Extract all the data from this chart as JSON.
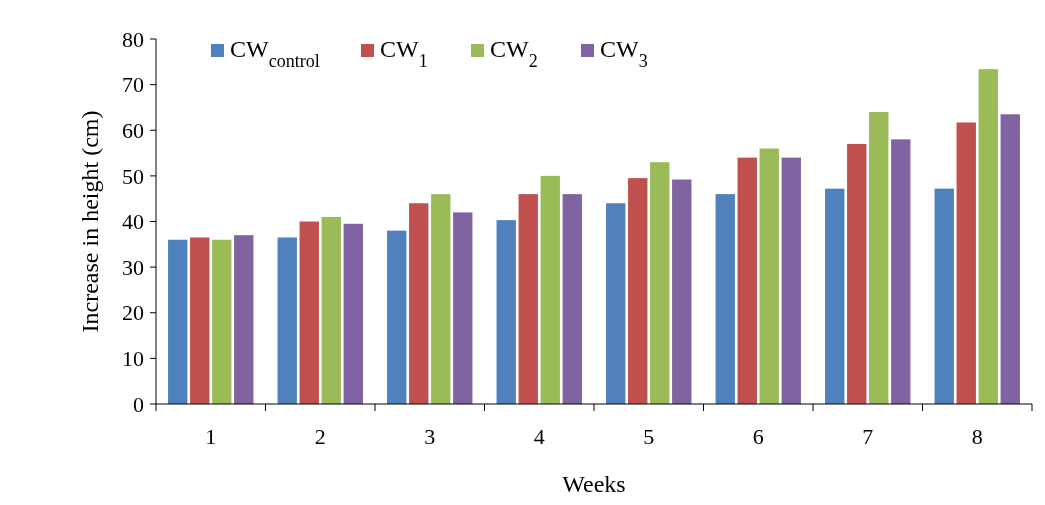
{
  "chart_data": {
    "type": "bar",
    "xlabel": "Weeks",
    "ylabel": "Increase in height (cm)",
    "categories": [
      "1",
      "2",
      "3",
      "4",
      "5",
      "6",
      "7",
      "8"
    ],
    "series": [
      {
        "name": "CW$_{control}$",
        "color": "#4f81bd",
        "values": [
          36,
          36.5,
          38,
          40.3,
          44,
          46,
          47.2,
          47.2
        ]
      },
      {
        "name": "CW$_{1}$",
        "color": "#c0504d",
        "values": [
          36.5,
          40,
          44,
          46,
          49.5,
          54,
          57,
          61.7
        ]
      },
      {
        "name": "CW$_{2}$",
        "color": "#9bbb59",
        "values": [
          36,
          41,
          46,
          50,
          53,
          56,
          64,
          73.4
        ]
      },
      {
        "name": "CW$_{3}$",
        "color": "#8064a2",
        "values": [
          37,
          39.5,
          42,
          46,
          49.2,
          54,
          58,
          63.5
        ]
      }
    ],
    "ylim": [
      0,
      80
    ],
    "yticks": [
      0,
      10,
      20,
      30,
      40,
      50,
      60,
      70,
      80
    ],
    "grid": false,
    "legend": "top left"
  }
}
